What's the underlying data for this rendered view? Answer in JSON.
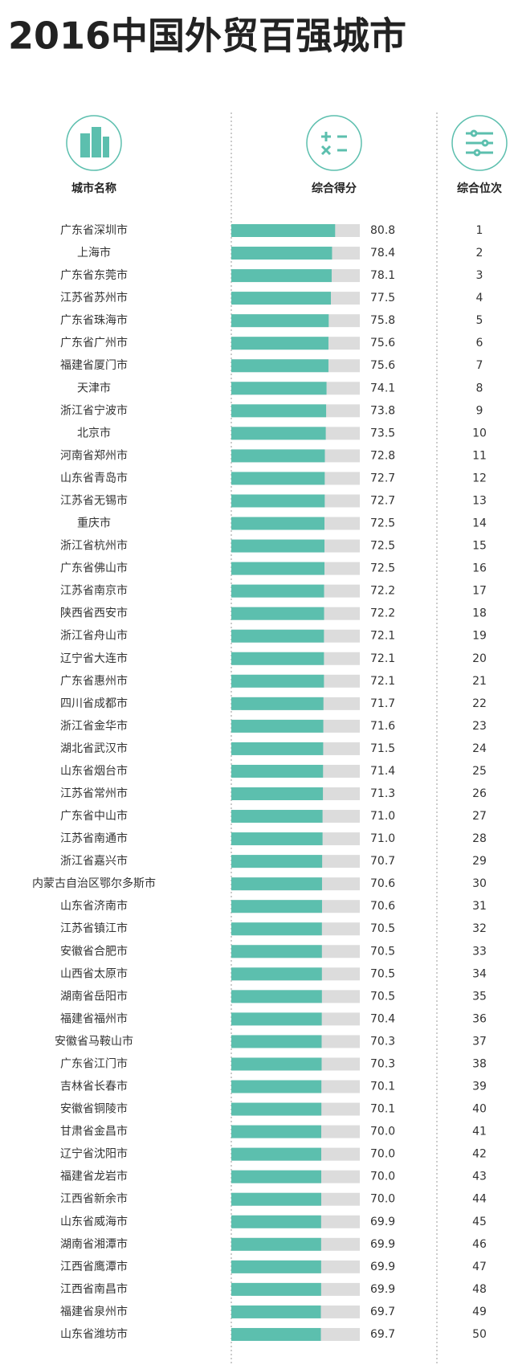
{
  "chart_data": {
    "type": "bar",
    "orientation": "horizontal",
    "title": "2016中国外贸百强城市",
    "category_header": "城市名称",
    "value_header": "综合得分",
    "rank_header": "综合位次",
    "categories": [
      "广东省深圳市",
      "上海市",
      "广东省东莞市",
      "江苏省苏州市",
      "广东省珠海市",
      "广东省广州市",
      "福建省厦门市",
      "天津市",
      "浙江省宁波市",
      "北京市",
      "河南省郑州市",
      "山东省青岛市",
      "江苏省无锡市",
      "重庆市",
      "浙江省杭州市",
      "广东省佛山市",
      "江苏省南京市",
      "陕西省西安市",
      "浙江省舟山市",
      "辽宁省大连市",
      "广东省惠州市",
      "四川省成都市",
      "浙江省金华市",
      "湖北省武汉市",
      "山东省烟台市",
      "江苏省常州市",
      "广东省中山市",
      "江苏省南通市",
      "浙江省嘉兴市",
      "内蒙古自治区鄂尔多斯市",
      "山东省济南市",
      "江苏省镇江市",
      "安徽省合肥市",
      "山西省太原市",
      "湖南省岳阳市",
      "福建省福州市",
      "安徽省马鞍山市",
      "广东省江门市",
      "吉林省长春市",
      "安徽省铜陵市",
      "甘肃省金昌市",
      "辽宁省沈阳市",
      "福建省龙岩市",
      "江西省新余市",
      "山东省威海市",
      "湖南省湘潭市",
      "江西省鹰潭市",
      "江西省南昌市",
      "福建省泉州市",
      "山东省潍坊市"
    ],
    "values": [
      80.8,
      78.4,
      78.1,
      77.5,
      75.8,
      75.6,
      75.6,
      74.1,
      73.8,
      73.5,
      72.8,
      72.7,
      72.7,
      72.5,
      72.5,
      72.5,
      72.2,
      72.2,
      72.1,
      72.1,
      72.1,
      71.7,
      71.6,
      71.5,
      71.4,
      71.3,
      71.0,
      71.0,
      70.7,
      70.6,
      70.6,
      70.5,
      70.5,
      70.5,
      70.5,
      70.4,
      70.3,
      70.3,
      70.1,
      70.1,
      70.0,
      70.0,
      70.0,
      70.0,
      69.9,
      69.9,
      69.9,
      69.9,
      69.7,
      69.7
    ],
    "value_labels": [
      "80.8",
      "78.4",
      "78.1",
      "77.5",
      "75.8",
      "75.6",
      "75.6",
      "74.1",
      "73.8",
      "73.5",
      "72.8",
      "72.7",
      "72.7",
      "72.5",
      "72.5",
      "72.5",
      "72.2",
      "72.2",
      "72.1",
      "72.1",
      "72.1",
      "71.7",
      "71.6",
      "71.5",
      "71.4",
      "71.3",
      "71.0",
      "71.0",
      "70.7",
      "70.6",
      "70.6",
      "70.5",
      "70.5",
      "70.5",
      "70.5",
      "70.4",
      "70.3",
      "70.3",
      "70.1",
      "70.1",
      "70.0",
      "70.0",
      "70.0",
      "70.0",
      "69.9",
      "69.9",
      "69.9",
      "69.9",
      "69.7",
      "69.7"
    ],
    "ranks": [
      1,
      2,
      3,
      4,
      5,
      6,
      7,
      8,
      9,
      10,
      11,
      12,
      13,
      14,
      15,
      16,
      17,
      18,
      19,
      20,
      21,
      22,
      23,
      24,
      25,
      26,
      27,
      28,
      29,
      30,
      31,
      32,
      33,
      34,
      35,
      36,
      37,
      38,
      39,
      40,
      41,
      42,
      43,
      44,
      45,
      46,
      47,
      48,
      49,
      50
    ],
    "xlim": [
      0,
      100
    ],
    "color": "#5cbfae",
    "track_color": "#dcdcdc"
  }
}
